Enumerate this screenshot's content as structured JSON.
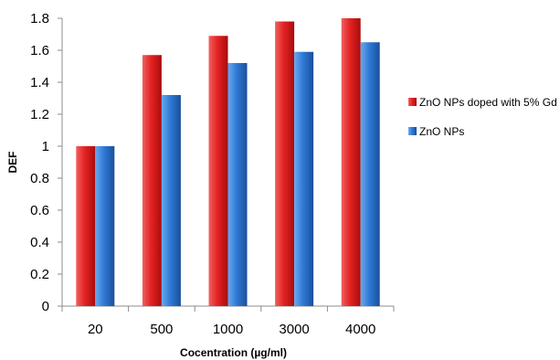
{
  "chart_data": {
    "type": "bar",
    "title": "",
    "xlabel": "Cocentration (µg/ml)",
    "ylabel": "DEF",
    "categories": [
      "20",
      "500",
      "1000",
      "3000",
      "4000"
    ],
    "series": [
      {
        "name": "ZnO NPs doped with 5% Gd",
        "color": "#e02020",
        "values": [
          1.0,
          1.57,
          1.69,
          1.78,
          1.8
        ]
      },
      {
        "name": "ZnO NPs",
        "color": "#2f7ad6",
        "values": [
          1.0,
          1.32,
          1.52,
          1.59,
          1.65
        ]
      }
    ],
    "ylim": [
      0,
      1.8
    ],
    "yticks": [
      "0",
      "0.2",
      "0.4",
      "0.6",
      "0.8",
      "1",
      "1.2",
      "1.4",
      "1.6",
      "1.8"
    ],
    "grid": false,
    "legend": "right"
  }
}
